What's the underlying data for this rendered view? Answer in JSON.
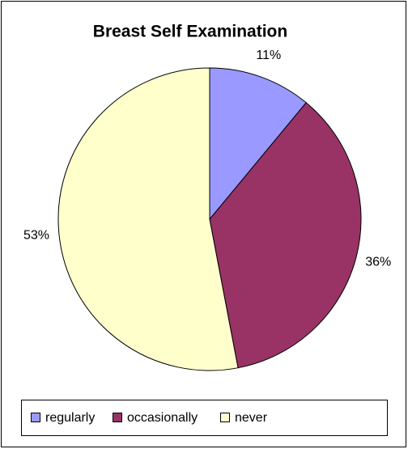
{
  "chart_data": {
    "type": "pie",
    "title": "Breast Self Examination",
    "categories": [
      "regularly",
      "occasionally",
      "never"
    ],
    "values": [
      11,
      36,
      53
    ],
    "value_labels": [
      "11%",
      "36%",
      "53%"
    ],
    "colors": [
      "#9999ff",
      "#993366",
      "#ffffcc"
    ],
    "legend": "bottom"
  }
}
